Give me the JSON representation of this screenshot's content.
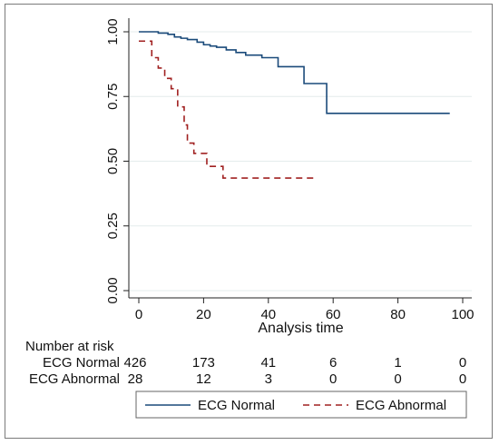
{
  "chart_data": {
    "type": "line",
    "subtype": "kaplan-meier",
    "title": "",
    "xlabel": "Analysis time",
    "ylabel": "",
    "xlim": [
      0,
      100
    ],
    "ylim": [
      0,
      1
    ],
    "x_ticks": [
      0,
      20,
      40,
      60,
      80,
      100
    ],
    "x_tick_labels": [
      "0",
      "20",
      "40",
      "60",
      "80",
      "100"
    ],
    "y_ticks": [
      0,
      0.25,
      0.5,
      0.75,
      1
    ],
    "y_tick_labels": [
      "0.00",
      "0.25",
      "0.50",
      "0.75",
      "1.00"
    ],
    "grid": "horizontal",
    "legend_position": "bottom",
    "colors": {
      "ecg_normal": "#1a4a7a",
      "ecg_abnormal": "#a02020"
    },
    "series": [
      {
        "name": "ECG Normal",
        "color": "#1a4a7a",
        "dash": "solid",
        "points": [
          [
            0,
            1.0
          ],
          [
            6,
            0.995
          ],
          [
            9,
            0.99
          ],
          [
            11,
            0.98
          ],
          [
            13,
            0.975
          ],
          [
            15,
            0.97
          ],
          [
            18,
            0.96
          ],
          [
            20,
            0.95
          ],
          [
            22,
            0.945
          ],
          [
            24,
            0.94
          ],
          [
            27,
            0.93
          ],
          [
            30,
            0.92
          ],
          [
            33,
            0.91
          ],
          [
            38,
            0.9
          ],
          [
            43,
            0.865
          ],
          [
            51,
            0.8
          ],
          [
            58,
            0.685
          ],
          [
            96,
            0.685
          ]
        ]
      },
      {
        "name": "ECG Abnormal",
        "color": "#a02020",
        "dash": "dashed",
        "points": [
          [
            0,
            0.964
          ],
          [
            4,
            0.9
          ],
          [
            6,
            0.86
          ],
          [
            8,
            0.82
          ],
          [
            10,
            0.78
          ],
          [
            12,
            0.71
          ],
          [
            14,
            0.64
          ],
          [
            15,
            0.57
          ],
          [
            17,
            0.53
          ],
          [
            21,
            0.48
          ],
          [
            26,
            0.435
          ],
          [
            54,
            0.435
          ]
        ]
      }
    ]
  },
  "risk_table": {
    "title": "Number at risk",
    "rows": [
      {
        "label": "ECG Normal",
        "values": [
          "426",
          "173",
          "41",
          "6",
          "1",
          "0"
        ]
      },
      {
        "label": "ECG Abnormal",
        "values": [
          "28",
          "12",
          "3",
          "0",
          "0",
          "0"
        ]
      }
    ]
  },
  "legend": {
    "items": [
      {
        "label": "ECG Normal",
        "color": "#1a4a7a",
        "dash": "solid"
      },
      {
        "label": "ECG Abnormal",
        "color": "#a02020",
        "dash": "dashed"
      }
    ]
  }
}
